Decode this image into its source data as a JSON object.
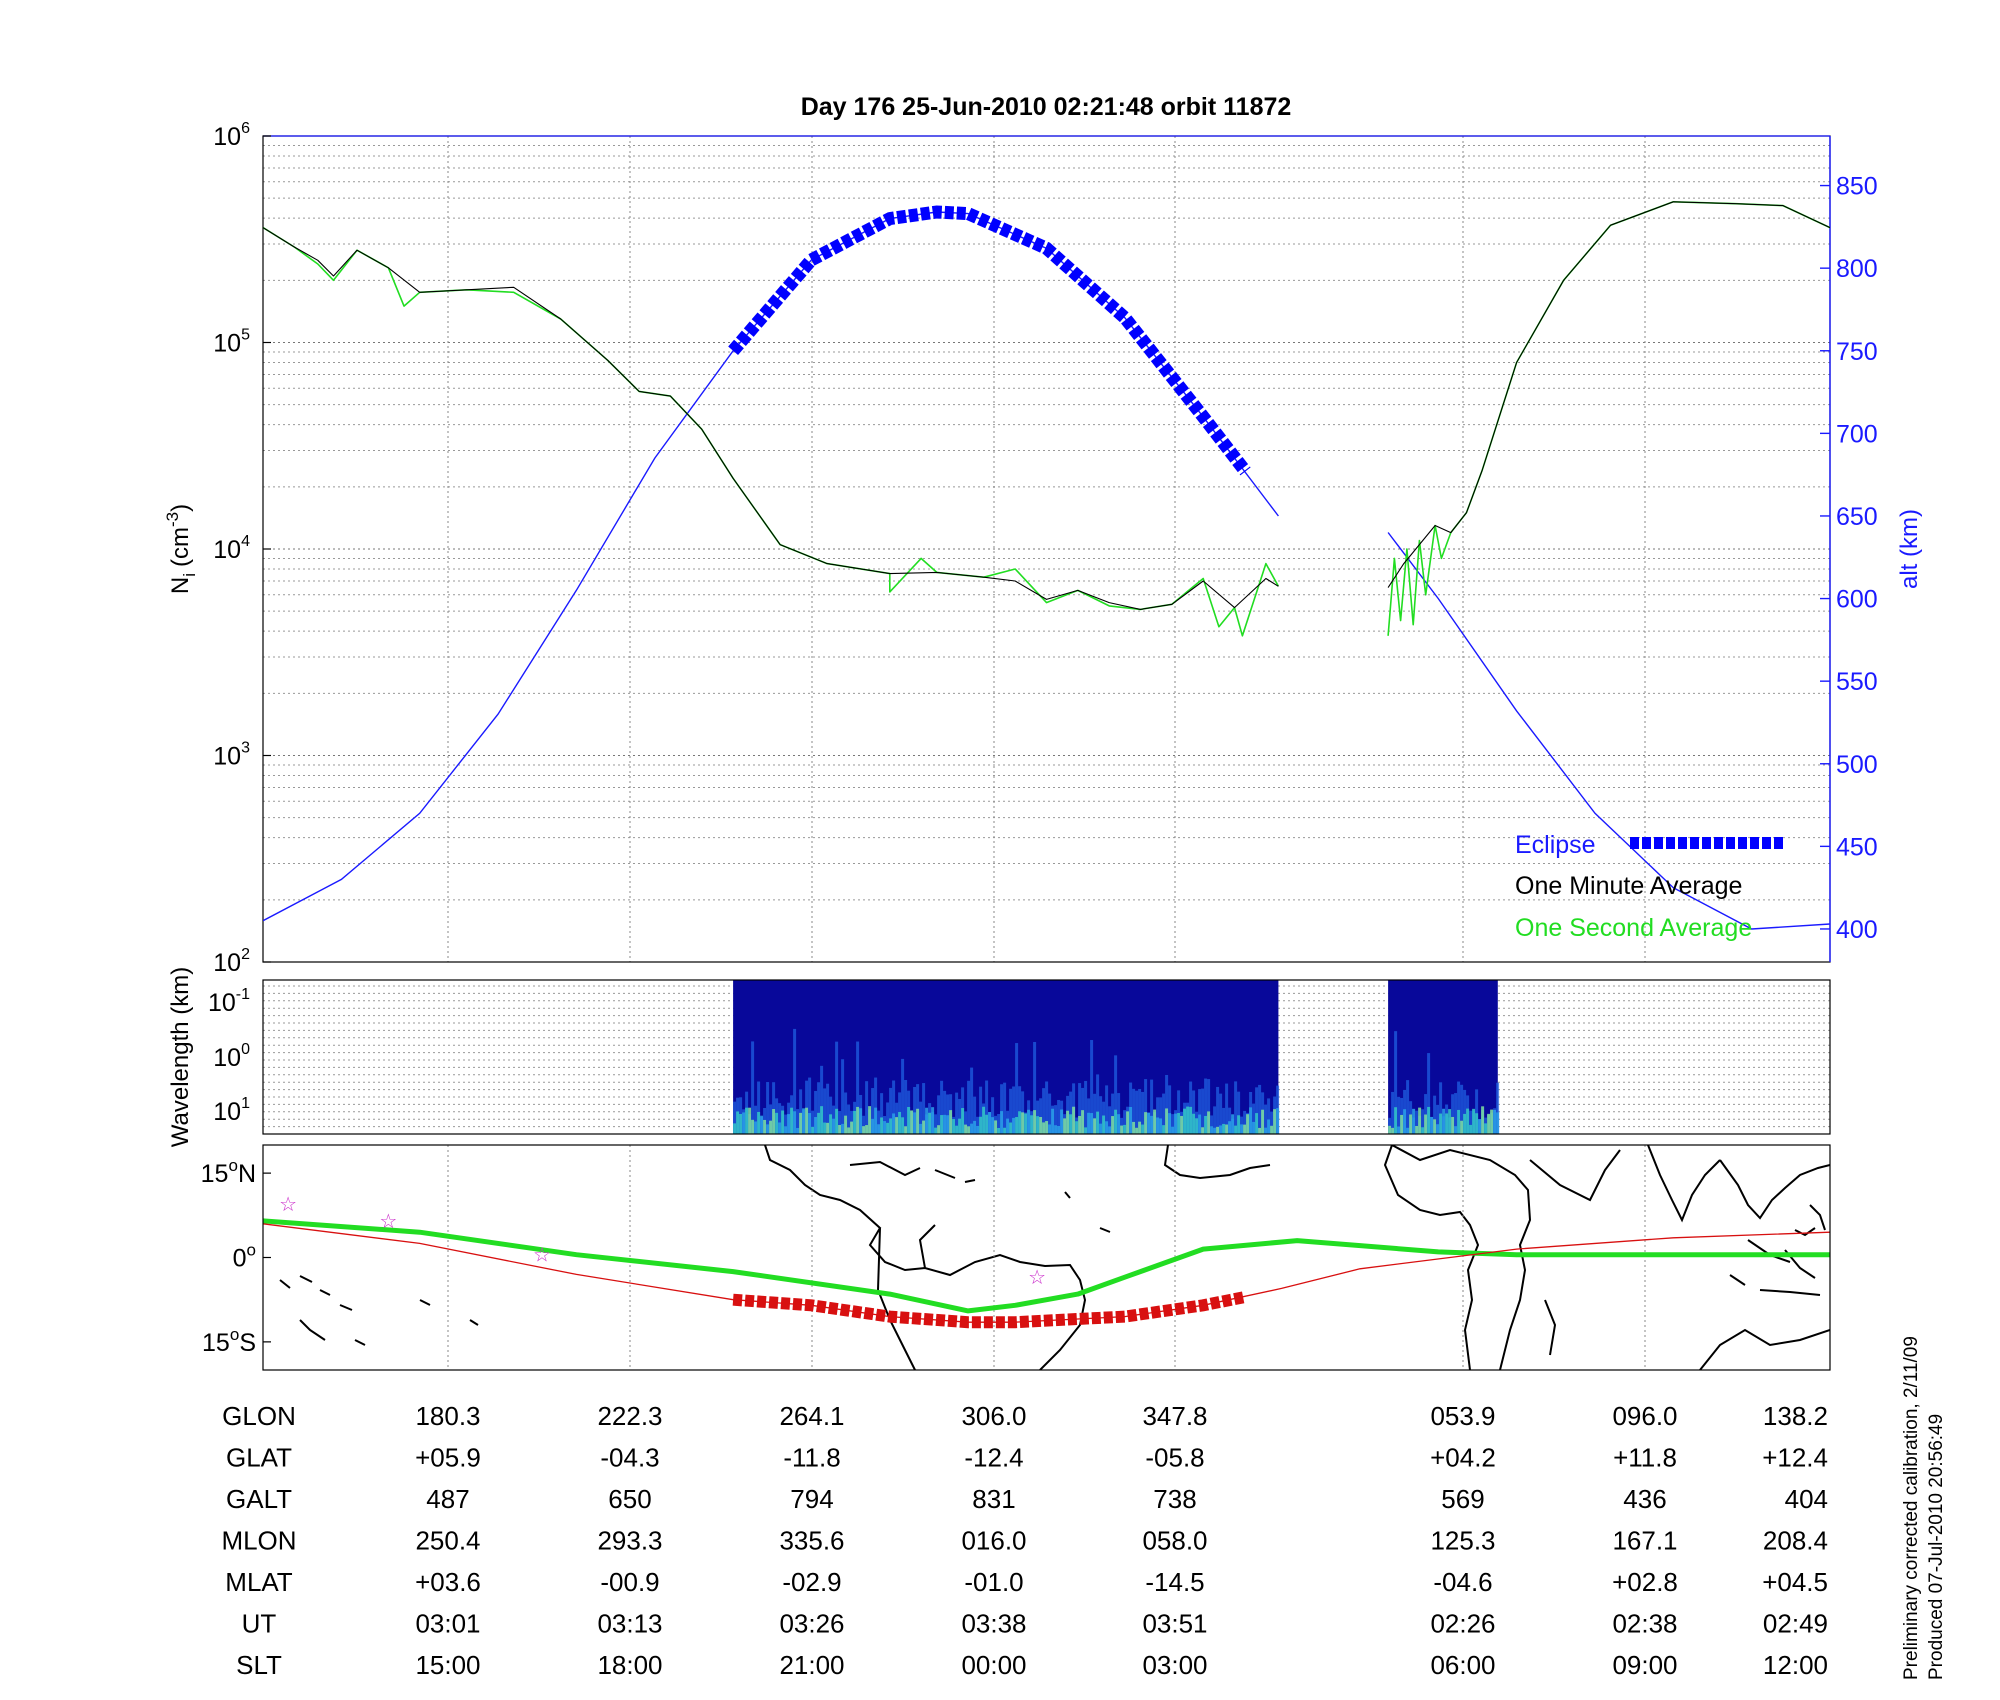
{
  "figure": {
    "title": "Day 176  25-Jun-2010 02:21:48   orbit 11872",
    "footnote_1": "Preliminary corrected calibration, 2/11/09",
    "footnote_2": "Produced 07-Jul-2010 20:56:49"
  },
  "colors": {
    "altitude": "#1a1aff",
    "eclipse": "#0000ff",
    "minute_avg": "#000000",
    "second_avg": "#22dd22",
    "track": "#d81010",
    "magnetic_equator": "#22dd22",
    "spectrogram_bg": "#08089a",
    "stars": "#cc33cc"
  },
  "chart_data": [
    {
      "type": "line",
      "panel": "ion density",
      "title": "Day 176  25-Jun-2010 02:21:48   orbit 11872",
      "ylabel_main": "N",
      "ylabel_sub": "i",
      "ylabel_unit": "(cm",
      "ylabel_exp": "-3",
      "ylabel_close": ")",
      "yscale": "log",
      "ylim": [
        100,
        1000000
      ],
      "yticks": [
        {
          "base": "10",
          "exp": "2",
          "value": 100
        },
        {
          "base": "10",
          "exp": "3",
          "value": 1000
        },
        {
          "base": "10",
          "exp": "4",
          "value": 10000
        },
        {
          "base": "10",
          "exp": "5",
          "value": 100000
        },
        {
          "base": "10",
          "exp": "6",
          "value": 1000000
        }
      ],
      "y2label": "alt (km)",
      "y2lim": [
        380,
        880
      ],
      "y2ticks": [
        "400",
        "450",
        "500",
        "550",
        "600",
        "650",
        "700",
        "750",
        "800",
        "850"
      ],
      "x_domain": [
        0,
        1
      ],
      "gap_x": [
        0.648,
        0.718
      ],
      "legend": {
        "position": "bottom-right",
        "entries": [
          "Eclipse",
          "One Minute Average",
          "One Second Average"
        ]
      },
      "series": [
        {
          "name": "One Minute Average",
          "kind": "density",
          "segments": [
            {
              "x": [
                0.0,
                0.02,
                0.035,
                0.045,
                0.06,
                0.08,
                0.1,
                0.13,
                0.16,
                0.19,
                0.22,
                0.24,
                0.26,
                0.28,
                0.3,
                0.33,
                0.36,
                0.4,
                0.43,
                0.46,
                0.48,
                0.5,
                0.52,
                0.54,
                0.56,
                0.58,
                0.6,
                0.62,
                0.64,
                0.648
              ],
              "y": [
                360000,
                290000,
                250000,
                210000,
                280000,
                230000,
                175000,
                180000,
                185000,
                130000,
                82000,
                58000,
                55000,
                38000,
                22000,
                10500,
                8500,
                7600,
                7700,
                7300,
                7000,
                5700,
                6300,
                5500,
                5100,
                5400,
                7000,
                5200,
                7200,
                6600
              ]
            },
            {
              "x": [
                0.718,
                0.728,
                0.738,
                0.748,
                0.758,
                0.768,
                0.778,
                0.8,
                0.83,
                0.86,
                0.9,
                0.94,
                0.97,
                1.0
              ],
              "y": [
                6500,
                8500,
                10500,
                13000,
                12000,
                15000,
                24000,
                80000,
                200000,
                370000,
                480000,
                470000,
                460000,
                360000
              ]
            }
          ]
        },
        {
          "name": "One Second Average",
          "kind": "density",
          "segments": [
            {
              "x": [
                0.0,
                0.02,
                0.035,
                0.045,
                0.06,
                0.08,
                0.09,
                0.1,
                0.13,
                0.16,
                0.19,
                0.22,
                0.24,
                0.26,
                0.28,
                0.3,
                0.33,
                0.36,
                0.4,
                0.4,
                0.42,
                0.43,
                0.46,
                0.48,
                0.5,
                0.52,
                0.54,
                0.56,
                0.58,
                0.6,
                0.61,
                0.62,
                0.625,
                0.64,
                0.648
              ],
              "y": [
                360000,
                290000,
                240000,
                200000,
                280000,
                230000,
                150000,
                175000,
                180000,
                175000,
                130000,
                82000,
                58000,
                55000,
                38000,
                22000,
                10500,
                8500,
                7600,
                6200,
                9000,
                7700,
                7300,
                8000,
                5500,
                6300,
                5300,
                5100,
                5400,
                7200,
                4200,
                5200,
                3800,
                8500,
                6600
              ]
            },
            {
              "x": [
                0.718,
                0.722,
                0.726,
                0.73,
                0.734,
                0.738,
                0.742,
                0.748,
                0.752,
                0.758,
                0.768,
                0.778,
                0.8,
                0.83,
                0.86,
                0.9,
                0.94,
                0.97,
                1.0
              ],
              "y": [
                3800,
                9000,
                4500,
                10000,
                4300,
                11000,
                6000,
                13000,
                9000,
                12000,
                15000,
                24000,
                80000,
                200000,
                370000,
                480000,
                470000,
                460000,
                360000
              ]
            }
          ]
        },
        {
          "name": "Altitude",
          "kind": "altitude_km",
          "segments": [
            {
              "x": [
                0.0,
                0.05,
                0.1,
                0.15,
                0.2,
                0.25,
                0.3,
                0.35,
                0.4,
                0.43,
                0.45,
                0.5,
                0.55,
                0.6,
                0.648
              ],
              "y": [
                405,
                430,
                470,
                530,
                605,
                685,
                750,
                805,
                830,
                834,
                833,
                812,
                770,
                710,
                650
              ]
            },
            {
              "x": [
                0.718,
                0.75,
                0.8,
                0.85,
                0.9,
                0.95,
                1.0
              ],
              "y": [
                640,
                600,
                532,
                470,
                425,
                400,
                403
              ]
            }
          ]
        },
        {
          "name": "Eclipse",
          "kind": "eclipse_altitude_km",
          "x": [
            0.3,
            0.35,
            0.4,
            0.43,
            0.45,
            0.5,
            0.55,
            0.6,
            0.627
          ],
          "y": [
            750,
            805,
            830,
            834,
            833,
            812,
            770,
            710,
            677
          ]
        }
      ]
    },
    {
      "type": "heatmap",
      "panel": "spectrogram",
      "ylabel": "Wavelength (km)",
      "yticks": [
        {
          "base": "10",
          "exp": "-1"
        },
        {
          "base": "10",
          "exp": "0"
        },
        {
          "base": "10",
          "exp": "1"
        }
      ],
      "blocks": [
        {
          "x_start": 0.3,
          "x_end": 0.648
        },
        {
          "x_start": 0.718,
          "x_end": 0.788
        }
      ]
    },
    {
      "type": "line",
      "panel": "ground track map",
      "ylim": [
        -20,
        20
      ],
      "yticks": [
        {
          "text": "15",
          "deg": "o",
          "hemi": "N",
          "value": 15
        },
        {
          "text": "0",
          "deg": "o",
          "hemi": "",
          "value": 0
        },
        {
          "text": "15",
          "deg": "o",
          "hemi": "S",
          "value": -15
        }
      ],
      "series": [
        {
          "name": "Magnetic equator",
          "x": [
            0.0,
            0.1,
            0.2,
            0.3,
            0.4,
            0.45,
            0.48,
            0.52,
            0.55,
            0.6,
            0.66,
            0.75,
            0.8,
            0.9,
            1.0
          ],
          "y": [
            6.5,
            4.5,
            0.5,
            -2.5,
            -6.5,
            -9.5,
            -8.5,
            -6.5,
            -3.5,
            1.5,
            3,
            1,
            0.5,
            0.5,
            0.5
          ]
        },
        {
          "name": "Satellite track",
          "x": [
            0.0,
            0.1,
            0.2,
            0.3,
            0.35,
            0.4,
            0.45,
            0.48,
            0.55,
            0.6,
            0.65,
            0.7,
            0.8,
            0.9,
            1.0
          ],
          "y": [
            6,
            2.5,
            -3,
            -7.5,
            -8.5,
            -10.5,
            -11.5,
            -11.5,
            -10.5,
            -8.5,
            -5.5,
            -2,
            1.5,
            3.5,
            4.5
          ]
        },
        {
          "name": "Eclipse track",
          "x": [
            0.3,
            0.35,
            0.4,
            0.45,
            0.48,
            0.55,
            0.6,
            0.627
          ],
          "y": [
            -7.5,
            -8.5,
            -10.5,
            -11.5,
            -11.5,
            -10.5,
            -8.5,
            -7
          ]
        }
      ],
      "stars": [
        {
          "x": 0.016,
          "y": 9.5
        },
        {
          "x": 0.08,
          "y": 6.5
        },
        {
          "x": 0.178,
          "y": 0.5
        },
        {
          "x": 0.494,
          "y": -3.5
        }
      ]
    },
    {
      "type": "table",
      "panel": "orbit parameters",
      "rows": [
        {
          "label": "GLON",
          "values": [
            "180.3",
            "222.3",
            "264.1",
            "306.0",
            "347.8",
            "053.9",
            "096.0",
            "138.2"
          ]
        },
        {
          "label": "GLAT",
          "values": [
            "+05.9",
            "-04.3",
            "-11.8",
            "-12.4",
            "-05.8",
            "+04.2",
            "+11.8",
            "+12.4"
          ]
        },
        {
          "label": "GALT",
          "values": [
            "487",
            "650",
            "794",
            "831",
            "738",
            "569",
            "436",
            "404"
          ]
        },
        {
          "label": "MLON",
          "values": [
            "250.4",
            "293.3",
            "335.6",
            "016.0",
            "058.0",
            "125.3",
            "167.1",
            "208.4"
          ]
        },
        {
          "label": "MLAT",
          "values": [
            "+03.6",
            "-00.9",
            "-02.9",
            "-01.0",
            "-14.5",
            "-04.6",
            "+02.8",
            "+04.5"
          ]
        },
        {
          "label": "UT",
          "values": [
            "03:01",
            "03:13",
            "03:26",
            "03:38",
            "03:51",
            "02:26",
            "02:38",
            "02:49"
          ]
        },
        {
          "label": "SLT",
          "values": [
            "15:00",
            "18:00",
            "21:00",
            "00:00",
            "03:00",
            "06:00",
            "09:00",
            "12:00"
          ]
        }
      ]
    }
  ]
}
